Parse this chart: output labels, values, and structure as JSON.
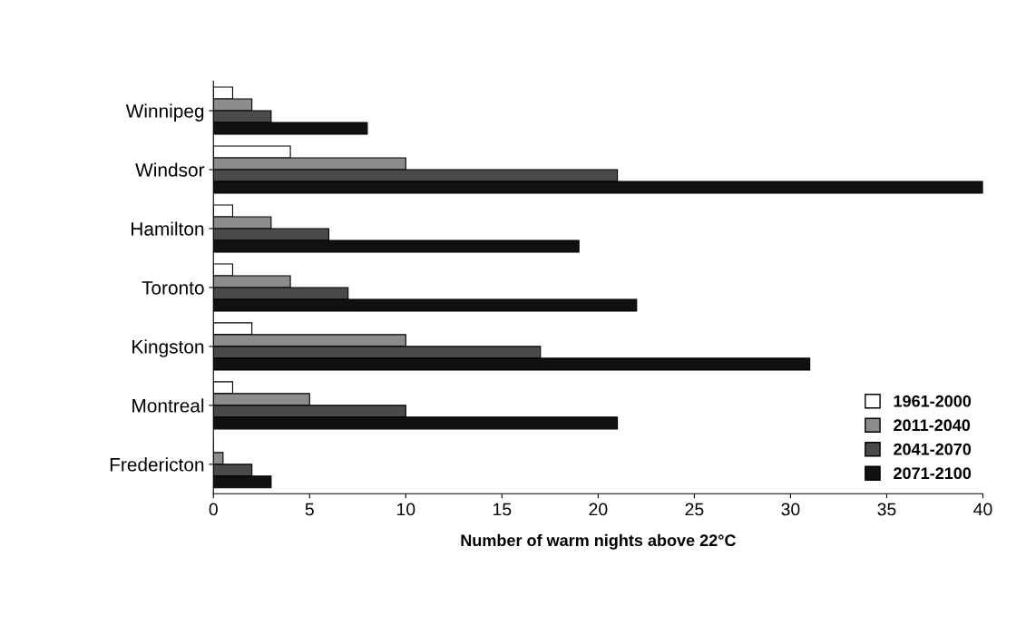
{
  "chart_data": {
    "type": "bar",
    "orientation": "horizontal",
    "xlabel": "Number of warm nights above 22°C",
    "categories": [
      "Winnipeg",
      "Windsor",
      "Hamilton",
      "Toronto",
      "Kingston",
      "Montreal",
      "Fredericton"
    ],
    "series": [
      {
        "name": "1961-2000",
        "color": "#ffffff",
        "values": [
          1,
          4,
          1,
          1,
          2,
          1,
          0
        ]
      },
      {
        "name": "2011-2040",
        "color": "#8c8c8c",
        "values": [
          2,
          10,
          3,
          4,
          10,
          5,
          0.5
        ]
      },
      {
        "name": "2041-2070",
        "color": "#4a4a4a",
        "values": [
          3,
          21,
          6,
          7,
          17,
          10,
          2
        ]
      },
      {
        "name": "2071-2100",
        "color": "#111111",
        "values": [
          8,
          40,
          19,
          22,
          31,
          21,
          3
        ]
      }
    ],
    "xlim": [
      0,
      40
    ],
    "xticks": [
      0,
      5,
      10,
      15,
      20,
      25,
      30,
      35,
      40
    ],
    "grid": false,
    "legend": "bottom right"
  }
}
